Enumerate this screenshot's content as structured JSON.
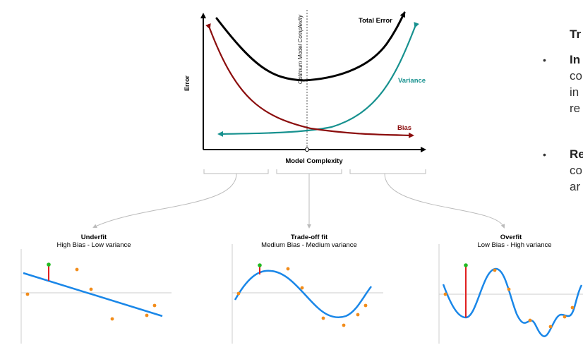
{
  "main_chart": {
    "xlabel": "Model Complexity",
    "ylabel": "Error",
    "optimum_label": "Optimum Model Complexity",
    "curves": [
      {
        "name": "Total Error",
        "color": "#000000"
      },
      {
        "name": "Variance",
        "color": "#17918f"
      },
      {
        "name": "Bias",
        "color": "#8b0d0d"
      }
    ]
  },
  "panels": [
    {
      "title": "Underfit",
      "subtitle": "High Bias - Low variance"
    },
    {
      "title": "Trade-off fit",
      "subtitle": "Medium Bias - Medium variance"
    },
    {
      "title": "Overfit",
      "subtitle": "Low Bias - High variance"
    }
  ],
  "side_text": {
    "heading": "Tr",
    "bullets": [
      {
        "bold": "In",
        "lines": [
          "co",
          "in",
          "re"
        ]
      },
      {
        "bold": "Re",
        "lines": [
          "co",
          "ar"
        ]
      }
    ]
  },
  "colors": {
    "fit_line": "#1a87e8",
    "point": "#f28c1a",
    "highlight_point": "#22bb22",
    "residual": "#e02020",
    "bracket": "#bbbbbb"
  }
}
